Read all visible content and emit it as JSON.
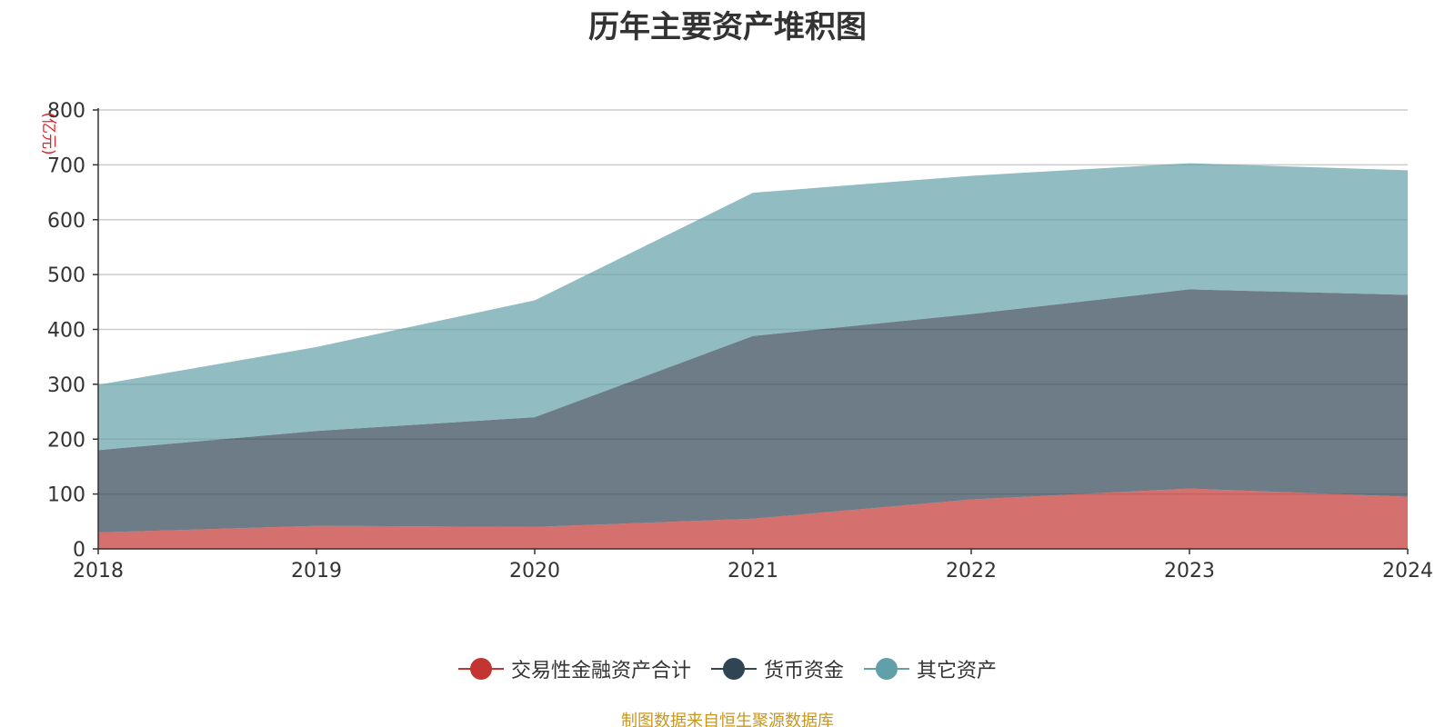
{
  "chart_data": {
    "type": "area",
    "stacked": true,
    "title": "历年主要资产堆积图",
    "unit_label": "(亿元)",
    "categories": [
      "2018",
      "2019",
      "2020",
      "2021",
      "2022",
      "2023",
      "2024"
    ],
    "y_ticks": [
      "0",
      "100",
      "200",
      "300",
      "400",
      "500",
      "600",
      "700",
      "800"
    ],
    "ylim": [
      0,
      800
    ],
    "grid": true,
    "legend_position": "bottom",
    "series": [
      {
        "name": "交易性金融资产合计",
        "values": [
          30,
          42,
          40,
          55,
          90,
          110,
          95
        ],
        "color": "#c23531"
      },
      {
        "name": "货币资金",
        "values": [
          150,
          173,
          200,
          333,
          338,
          363,
          368
        ],
        "color": "#2f4554"
      },
      {
        "name": "其它资产",
        "values": [
          119,
          153,
          213,
          261,
          252,
          230,
          227
        ],
        "color": "#61a0a8"
      }
    ]
  },
  "legend": [
    {
      "label": "交易性金融资产合计",
      "color": "#c23531"
    },
    {
      "label": "货币资金",
      "color": "#2f4554"
    },
    {
      "label": "其它资产",
      "color": "#61a0a8"
    }
  ],
  "source_note": "制图数据来自恒生聚源数据库"
}
